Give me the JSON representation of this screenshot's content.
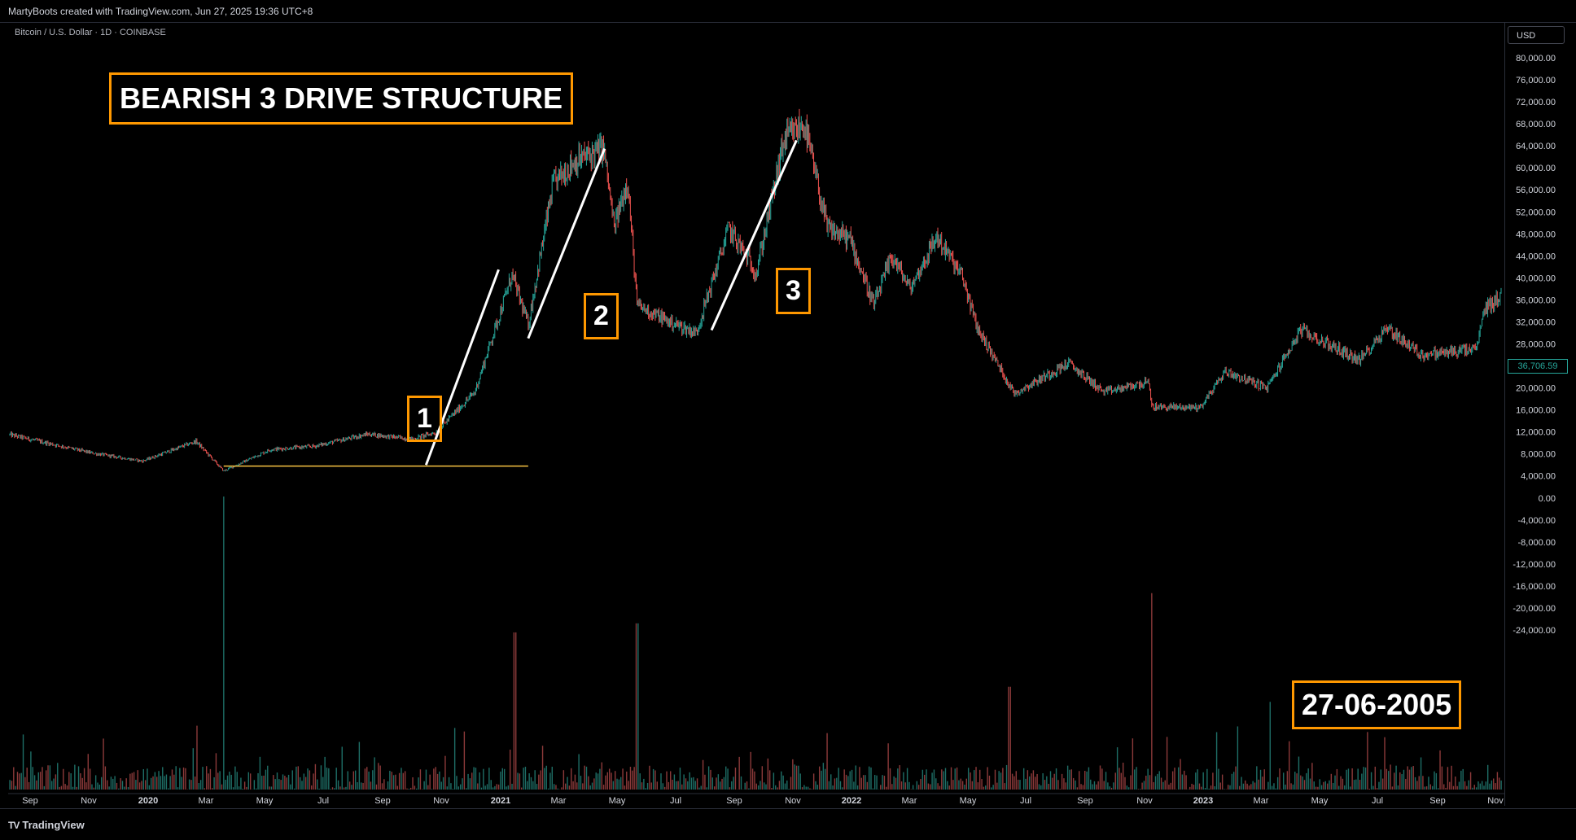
{
  "header": {
    "attribution": "MartyBoots created with TradingView.com, Jun 27, 2025 19:36 UTC+8"
  },
  "symbol_info": "Bitcoin / U.S. Dollar · 1D · COINBASE",
  "currency_button": "USD",
  "footer": {
    "logo_mark": "TV",
    "logo_text": "TradingView"
  },
  "annotations": {
    "title": "BEARISH 3 DRIVE STRUCTURE",
    "date": "27-06-2005",
    "drive_1": "1",
    "drive_2": "2",
    "drive_3": "3"
  },
  "last_price_label": "36,706.59",
  "colors": {
    "up": "#26a69a",
    "down": "#ef5350",
    "accent": "#ff9800",
    "support_line": "#f5c242",
    "background": "#000000"
  },
  "chart_data": {
    "type": "candlestick",
    "title": "",
    "price_axis_ticks": [
      "80,000.00",
      "76,000.00",
      "72,000.00",
      "68,000.00",
      "64,000.00",
      "60,000.00",
      "56,000.00",
      "52,000.00",
      "48,000.00",
      "44,000.00",
      "40,000.00",
      "36,000.00",
      "32,000.00",
      "28,000.00",
      "24,000.00",
      "20,000.00",
      "16,000.00",
      "12,000.00",
      "8,000.00",
      "4,000.00",
      "0.00",
      "-4,000.00",
      "-8,000.00",
      "-12,000.00",
      "-16,000.00",
      "-20,000.00",
      "-24,000.00"
    ],
    "time_axis_ticks": [
      "Sep",
      "Nov",
      "2020",
      "Mar",
      "May",
      "Jul",
      "Sep",
      "Nov",
      "2021",
      "Mar",
      "May",
      "Jul",
      "Sep",
      "Nov",
      "2022",
      "Mar",
      "May",
      "Jul",
      "Sep",
      "Nov",
      "2023",
      "Mar",
      "May",
      "Jul",
      "Sep",
      "Nov"
    ],
    "time_axis_bold": [
      "2020",
      "2021",
      "2022",
      "2023"
    ],
    "x_range": [
      "2019-08-01",
      "2023-11-10"
    ],
    "price_range": [
      -24000,
      80000
    ],
    "price_anchors": [
      {
        "date": "2019-08-01",
        "price": 11500
      },
      {
        "date": "2019-10-25",
        "price": 8200
      },
      {
        "date": "2019-12-18",
        "price": 6700
      },
      {
        "date": "2020-02-12",
        "price": 10300
      },
      {
        "date": "2020-03-12",
        "price": 4900
      },
      {
        "date": "2020-04-30",
        "price": 8800
      },
      {
        "date": "2020-06-15",
        "price": 9400
      },
      {
        "date": "2020-08-10",
        "price": 11600
      },
      {
        "date": "2020-09-25",
        "price": 10700
      },
      {
        "date": "2020-10-20",
        "price": 11900
      },
      {
        "date": "2020-11-30",
        "price": 19200
      },
      {
        "date": "2021-01-08",
        "price": 40500
      },
      {
        "date": "2021-01-25",
        "price": 31500
      },
      {
        "date": "2021-02-20",
        "price": 57000
      },
      {
        "date": "2021-03-13",
        "price": 61000
      },
      {
        "date": "2021-04-14",
        "price": 63500
      },
      {
        "date": "2021-04-25",
        "price": 49000
      },
      {
        "date": "2021-05-09",
        "price": 58000
      },
      {
        "date": "2021-05-19",
        "price": 35000
      },
      {
        "date": "2021-06-22",
        "price": 32000
      },
      {
        "date": "2021-07-20",
        "price": 30000
      },
      {
        "date": "2021-08-23",
        "price": 49000
      },
      {
        "date": "2021-09-21",
        "price": 41000
      },
      {
        "date": "2021-10-20",
        "price": 65000
      },
      {
        "date": "2021-11-10",
        "price": 68000
      },
      {
        "date": "2021-12-04",
        "price": 49000
      },
      {
        "date": "2021-12-28",
        "price": 47000
      },
      {
        "date": "2022-01-22",
        "price": 35000
      },
      {
        "date": "2022-02-10",
        "price": 44000
      },
      {
        "date": "2022-03-01",
        "price": 38000
      },
      {
        "date": "2022-03-29",
        "price": 47500
      },
      {
        "date": "2022-04-25",
        "price": 40000
      },
      {
        "date": "2022-05-10",
        "price": 31000
      },
      {
        "date": "2022-06-18",
        "price": 19000
      },
      {
        "date": "2022-08-14",
        "price": 24500
      },
      {
        "date": "2022-09-20",
        "price": 19200
      },
      {
        "date": "2022-11-05",
        "price": 21000
      },
      {
        "date": "2022-11-10",
        "price": 16500
      },
      {
        "date": "2022-12-30",
        "price": 16500
      },
      {
        "date": "2023-01-25",
        "price": 23000
      },
      {
        "date": "2023-03-10",
        "price": 20000
      },
      {
        "date": "2023-04-14",
        "price": 30500
      },
      {
        "date": "2023-06-15",
        "price": 25000
      },
      {
        "date": "2023-07-13",
        "price": 31000
      },
      {
        "date": "2023-08-18",
        "price": 26000
      },
      {
        "date": "2023-10-15",
        "price": 27000
      },
      {
        "date": "2023-10-24",
        "price": 34500
      },
      {
        "date": "2023-11-10",
        "price": 36700
      }
    ],
    "volume_spikes": [
      {
        "date": "2020-03-12",
        "level": 1.0
      },
      {
        "date": "2021-01-11",
        "level": 0.55
      },
      {
        "date": "2021-05-19",
        "level": 0.58
      },
      {
        "date": "2022-06-13",
        "level": 0.37
      },
      {
        "date": "2022-11-09",
        "level": 0.68
      },
      {
        "date": "2023-03-13",
        "level": 0.32
      }
    ],
    "drive_lines": [
      {
        "name": "drive-1",
        "from": {
          "date": "2020-10-10",
          "price": 6000
        },
        "to": {
          "date": "2020-12-25",
          "price": 41500
        }
      },
      {
        "name": "drive-2",
        "from": {
          "date": "2021-01-25",
          "price": 29000
        },
        "to": {
          "date": "2021-04-15",
          "price": 63500
        }
      },
      {
        "name": "drive-3",
        "from": {
          "date": "2021-08-05",
          "price": 30500
        },
        "to": {
          "date": "2021-11-02",
          "price": 65000
        }
      }
    ],
    "support_line": {
      "from": "2020-03-12",
      "to": "2021-01-25",
      "price": 5800
    }
  }
}
